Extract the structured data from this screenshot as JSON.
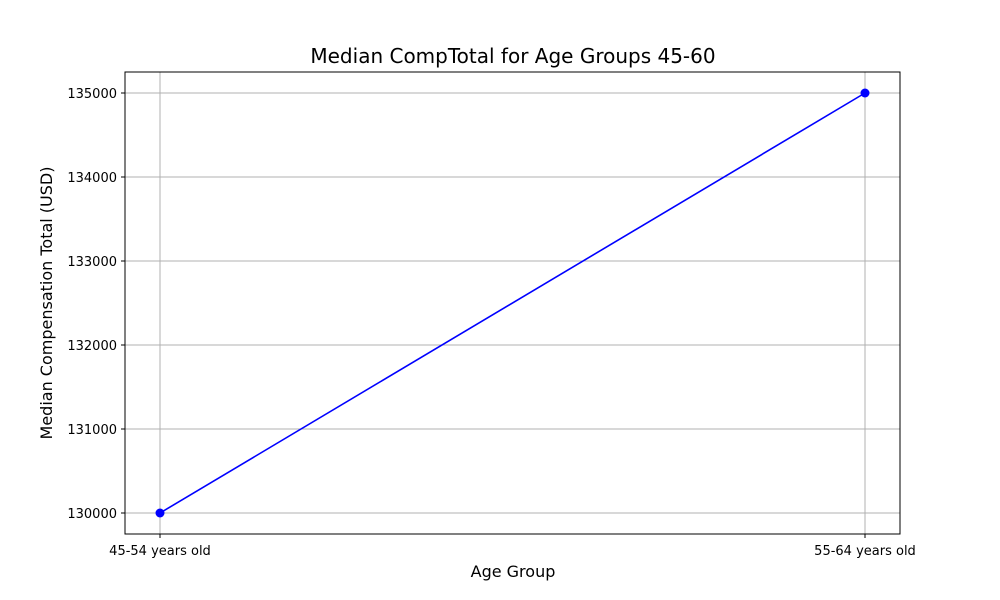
{
  "chart_data": {
    "type": "line",
    "title": "Median CompTotal for Age Groups 45-60",
    "xlabel": "Age Group",
    "ylabel": "Median Compensation Total (USD)",
    "categories": [
      "45-54 years old",
      "55-64 years old"
    ],
    "series": [
      {
        "values": [
          130000,
          135000
        ],
        "color": "#0000ff",
        "marker": "circle"
      }
    ],
    "yticks": [
      130000,
      131000,
      132000,
      133000,
      134000,
      135000
    ],
    "ylim": [
      129750,
      135250
    ],
    "grid": true
  }
}
